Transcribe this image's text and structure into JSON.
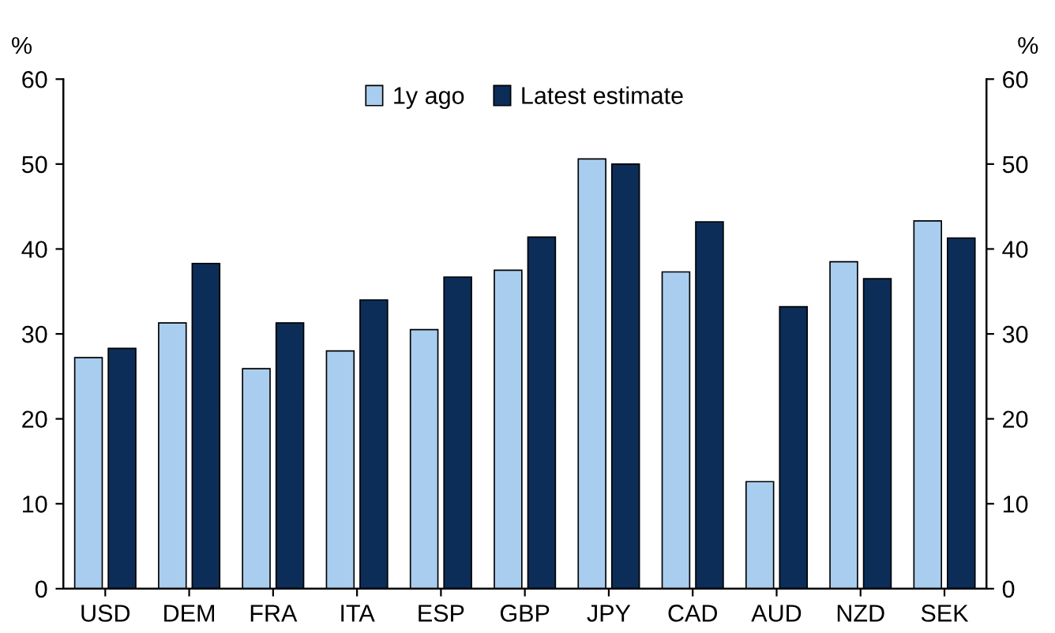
{
  "chart_data": {
    "type": "bar",
    "ylabel": "%",
    "y2label": "%",
    "categories": [
      "USD",
      "DEM",
      "FRA",
      "ITA",
      "ESP",
      "GBP",
      "JPY",
      "CAD",
      "AUD",
      "NZD",
      "SEK"
    ],
    "series": [
      {
        "name": "1y ago",
        "color": "#a9cdef",
        "values": [
          27.2,
          31.3,
          25.9,
          28.0,
          30.5,
          37.5,
          50.6,
          37.3,
          12.6,
          38.5,
          43.3
        ]
      },
      {
        "name": "Latest estimate",
        "color": "#0b2d58",
        "values": [
          28.3,
          38.3,
          31.3,
          34.0,
          36.7,
          41.4,
          50.0,
          43.2,
          33.2,
          36.5,
          41.3
        ]
      }
    ],
    "ylim": [
      0,
      60
    ],
    "yticks": [
      0,
      10,
      20,
      30,
      40,
      50,
      60
    ],
    "y2lim": [
      0,
      60
    ],
    "y2ticks": [
      0,
      10,
      20,
      30,
      40,
      50,
      60
    ],
    "legend": "top",
    "grid": false
  }
}
